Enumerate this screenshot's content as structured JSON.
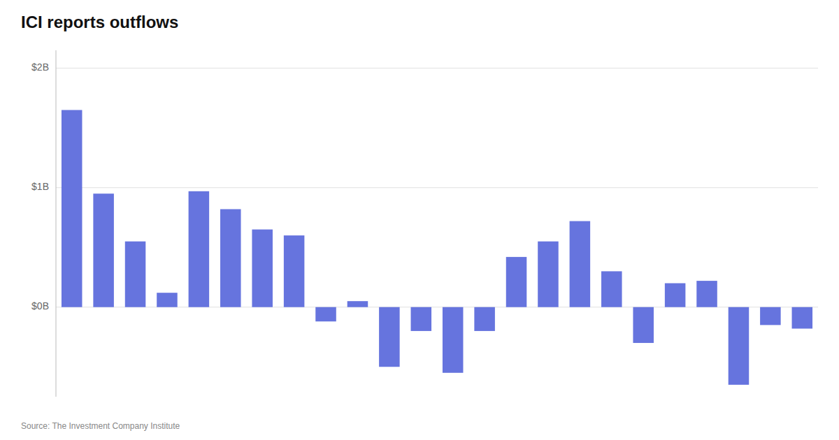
{
  "chart_data": {
    "type": "bar",
    "title": "ICI reports outflows",
    "source": "Source: The Investment Company Institute",
    "values": [
      1.65,
      0.95,
      0.55,
      0.12,
      0.97,
      0.82,
      0.65,
      0.6,
      -0.12,
      0.05,
      -0.5,
      -0.2,
      -0.55,
      -0.2,
      0.42,
      0.55,
      0.72,
      0.3,
      -0.3,
      0.2,
      0.22,
      -0.65,
      -0.15,
      -0.18
    ],
    "color": "#6674de",
    "ylim": [
      -0.75,
      2.15
    ],
    "yticks": [
      {
        "value": 0.0,
        "label": "$0B"
      },
      {
        "value": 1.0,
        "label": "$1B"
      },
      {
        "value": 2.0,
        "label": "$2B"
      }
    ],
    "grid": true,
    "tick_labels": "y"
  }
}
